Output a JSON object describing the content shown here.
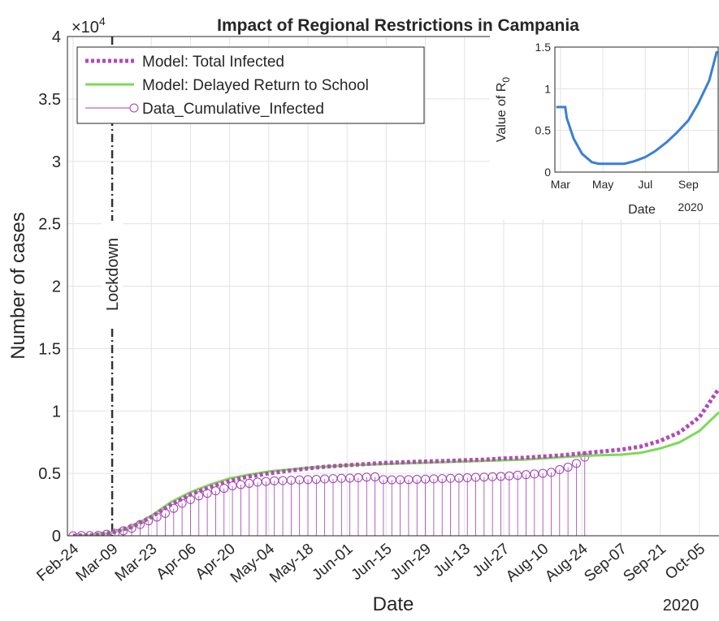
{
  "chart_data": {
    "type": "line",
    "title": "Impact of Regional Restrictions in Campania",
    "xlabel": "Date",
    "x_year_label": "2020",
    "ylabel": "Number of cases",
    "y_multiplier": {
      "base": "×10",
      "exponent": "4"
    },
    "xlim": [
      "2020-02-22",
      "2020-10-12"
    ],
    "xticks": [
      {
        "value": "2020-02-24",
        "label": "Feb-24"
      },
      {
        "value": "2020-03-09",
        "label": "Mar-09"
      },
      {
        "value": "2020-03-23",
        "label": "Mar-23"
      },
      {
        "value": "2020-04-06",
        "label": "Apr-06"
      },
      {
        "value": "2020-04-20",
        "label": "Apr-20"
      },
      {
        "value": "2020-05-04",
        "label": "May-04"
      },
      {
        "value": "2020-05-18",
        "label": "May-18"
      },
      {
        "value": "2020-06-01",
        "label": "Jun-01"
      },
      {
        "value": "2020-06-15",
        "label": "Jun-15"
      },
      {
        "value": "2020-06-29",
        "label": "Jun-29"
      },
      {
        "value": "2020-07-13",
        "label": "Jul-13"
      },
      {
        "value": "2020-07-27",
        "label": "Jul-27"
      },
      {
        "value": "2020-08-10",
        "label": "Aug-10"
      },
      {
        "value": "2020-08-24",
        "label": "Aug-24"
      },
      {
        "value": "2020-09-07",
        "label": "Sep-07"
      },
      {
        "value": "2020-09-21",
        "label": "Sep-21"
      },
      {
        "value": "2020-10-05",
        "label": "Oct-05"
      }
    ],
    "ylim": [
      0,
      40000
    ],
    "yticks": [
      {
        "value": 0,
        "label": "0"
      },
      {
        "value": 5000,
        "label": "0.5"
      },
      {
        "value": 10000,
        "label": "1"
      },
      {
        "value": 15000,
        "label": "1.5"
      },
      {
        "value": 20000,
        "label": "2"
      },
      {
        "value": 25000,
        "label": "2.5"
      },
      {
        "value": 30000,
        "label": "3"
      },
      {
        "value": 35000,
        "label": "3.5"
      },
      {
        "value": 40000,
        "label": "4"
      }
    ],
    "grid": true,
    "legend": "upper left",
    "annotation": {
      "text": "Lockdown",
      "x": "2020-03-09"
    },
    "series": [
      {
        "name": "Model: Total Infected",
        "color": "#b04bb8",
        "style": "dotted",
        "x": [
          "2020-02-24",
          "2020-03-02",
          "2020-03-09",
          "2020-03-16",
          "2020-03-23",
          "2020-03-30",
          "2020-04-06",
          "2020-04-13",
          "2020-04-20",
          "2020-04-27",
          "2020-05-04",
          "2020-05-11",
          "2020-05-18",
          "2020-05-25",
          "2020-06-01",
          "2020-06-08",
          "2020-06-15",
          "2020-06-22",
          "2020-06-29",
          "2020-07-06",
          "2020-07-13",
          "2020-07-20",
          "2020-07-27",
          "2020-08-03",
          "2020-08-10",
          "2020-08-17",
          "2020-08-24",
          "2020-08-31",
          "2020-09-07",
          "2020-09-14",
          "2020-09-21",
          "2020-09-28",
          "2020-10-05",
          "2020-10-12"
        ],
        "values": [
          0,
          50,
          250,
          700,
          1500,
          2500,
          3300,
          3900,
          4400,
          4750,
          5000,
          5200,
          5400,
          5550,
          5650,
          5750,
          5850,
          5900,
          5950,
          6000,
          6050,
          6100,
          6200,
          6250,
          6350,
          6450,
          6600,
          6750,
          6900,
          7150,
          7600,
          8300,
          9500,
          11800
        ]
      },
      {
        "name": "Model: Delayed Return to School",
        "color": "#7ed957",
        "style": "solid",
        "x": [
          "2020-02-24",
          "2020-03-02",
          "2020-03-09",
          "2020-03-16",
          "2020-03-23",
          "2020-03-30",
          "2020-04-06",
          "2020-04-13",
          "2020-04-20",
          "2020-04-27",
          "2020-05-04",
          "2020-05-11",
          "2020-05-18",
          "2020-05-25",
          "2020-06-01",
          "2020-06-08",
          "2020-06-15",
          "2020-06-22",
          "2020-06-29",
          "2020-07-06",
          "2020-07-13",
          "2020-07-20",
          "2020-07-27",
          "2020-08-03",
          "2020-08-10",
          "2020-08-17",
          "2020-08-24",
          "2020-08-31",
          "2020-09-07",
          "2020-09-14",
          "2020-09-21",
          "2020-09-28",
          "2020-10-05",
          "2020-10-12"
        ],
        "values": [
          0,
          50,
          250,
          700,
          1600,
          2700,
          3500,
          4100,
          4600,
          4900,
          5150,
          5300,
          5450,
          5550,
          5650,
          5700,
          5750,
          5800,
          5850,
          5900,
          5950,
          6000,
          6050,
          6100,
          6200,
          6300,
          6400,
          6450,
          6500,
          6650,
          7000,
          7500,
          8400,
          9900
        ]
      },
      {
        "name": "Data_Cumulative_Infected",
        "color": "#a03fb0",
        "style": "stem",
        "x": [
          "2020-02-24",
          "2020-02-27",
          "2020-03-01",
          "2020-03-04",
          "2020-03-07",
          "2020-03-10",
          "2020-03-13",
          "2020-03-16",
          "2020-03-19",
          "2020-03-22",
          "2020-03-25",
          "2020-03-28",
          "2020-03-31",
          "2020-04-03",
          "2020-04-06",
          "2020-04-09",
          "2020-04-12",
          "2020-04-15",
          "2020-04-18",
          "2020-04-21",
          "2020-04-24",
          "2020-04-27",
          "2020-04-30",
          "2020-05-03",
          "2020-05-06",
          "2020-05-09",
          "2020-05-12",
          "2020-05-15",
          "2020-05-18",
          "2020-05-21",
          "2020-05-24",
          "2020-05-27",
          "2020-05-30",
          "2020-06-02",
          "2020-06-05",
          "2020-06-08",
          "2020-06-11",
          "2020-06-14",
          "2020-06-17",
          "2020-06-20",
          "2020-06-23",
          "2020-06-26",
          "2020-06-29",
          "2020-07-02",
          "2020-07-05",
          "2020-07-08",
          "2020-07-11",
          "2020-07-14",
          "2020-07-17",
          "2020-07-20",
          "2020-07-23",
          "2020-07-26",
          "2020-07-29",
          "2020-08-01",
          "2020-08-04",
          "2020-08-07",
          "2020-08-10",
          "2020-08-13",
          "2020-08-16",
          "2020-08-19",
          "2020-08-22",
          "2020-08-25"
        ],
        "values": [
          0,
          13,
          17,
          31,
          120,
          200,
          400,
          600,
          900,
          1200,
          1500,
          1800,
          2200,
          2600,
          2900,
          3200,
          3400,
          3600,
          3800,
          4000,
          4100,
          4200,
          4300,
          4350,
          4400,
          4420,
          4450,
          4480,
          4500,
          4520,
          4550,
          4580,
          4600,
          4620,
          4650,
          4700,
          4720,
          4500,
          4480,
          4490,
          4500,
          4520,
          4540,
          4560,
          4580,
          4600,
          4620,
          4650,
          4680,
          4700,
          4730,
          4760,
          4800,
          4850,
          4900,
          4950,
          5000,
          5080,
          5300,
          5500,
          5800,
          6300
        ]
      }
    ],
    "inset": {
      "type": "line",
      "xlabel": "Date",
      "x_year_label": "2020",
      "ylabel": {
        "text": "Value of R",
        "subscript": "0"
      },
      "xlim": [
        "2020-02-22",
        "2020-10-15"
      ],
      "xticks": [
        {
          "value": "2020-03-01",
          "label": "Mar"
        },
        {
          "value": "2020-05-01",
          "label": "May"
        },
        {
          "value": "2020-07-01",
          "label": "Jul"
        },
        {
          "value": "2020-09-01",
          "label": "Sep"
        }
      ],
      "ylim": [
        0,
        1.5
      ],
      "yticks": [
        0,
        0.5,
        1,
        1.5
      ],
      "grid": true,
      "color": "#3a7fd5",
      "x": [
        "2020-02-24",
        "2020-03-08",
        "2020-03-10",
        "2020-03-20",
        "2020-04-01",
        "2020-04-15",
        "2020-04-25",
        "2020-05-15",
        "2020-06-01",
        "2020-06-15",
        "2020-07-01",
        "2020-07-15",
        "2020-08-01",
        "2020-08-15",
        "2020-09-01",
        "2020-09-15",
        "2020-10-01",
        "2020-10-12"
      ],
      "values": [
        0.78,
        0.78,
        0.65,
        0.4,
        0.22,
        0.12,
        0.1,
        0.1,
        0.1,
        0.13,
        0.18,
        0.25,
        0.36,
        0.47,
        0.62,
        0.82,
        1.1,
        1.45
      ]
    }
  }
}
